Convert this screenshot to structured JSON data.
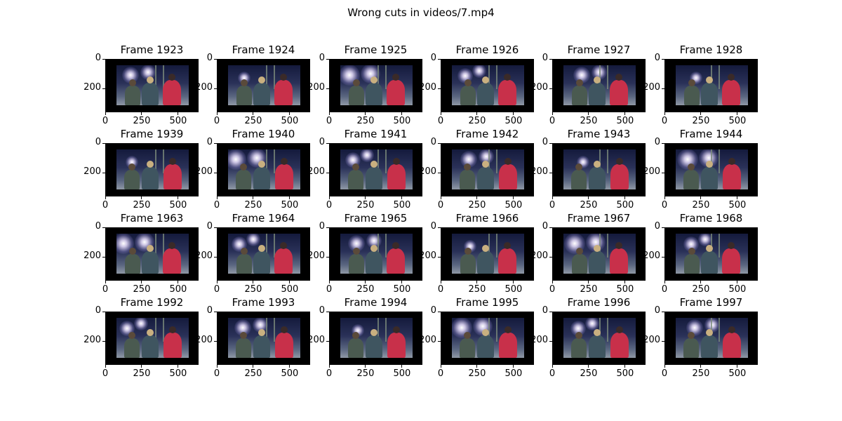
{
  "title": "Wrong cuts in videos/7.mp4",
  "xticks": [
    "0",
    "250",
    "500"
  ],
  "yticks": [
    "0",
    "200"
  ],
  "rows": [
    {
      "frames": [
        "Frame 1923",
        "Frame 1924",
        "Frame 1925",
        "Frame 1926",
        "Frame 1927",
        "Frame 1928"
      ]
    },
    {
      "frames": [
        "Frame 1939",
        "Frame 1940",
        "Frame 1941",
        "Frame 1942",
        "Frame 1943",
        "Frame 1944"
      ]
    },
    {
      "frames": [
        "Frame 1963",
        "Frame 1964",
        "Frame 1965",
        "Frame 1966",
        "Frame 1967",
        "Frame 1968"
      ]
    },
    {
      "frames": [
        "Frame 1992",
        "Frame 1993",
        "Frame 1994",
        "Frame 1995",
        "Frame 1996",
        "Frame 1997"
      ]
    }
  ],
  "chart_data": {
    "type": "image-grid",
    "title": "Wrong cuts in videos/7.mp4",
    "xlim": [
      0,
      640
    ],
    "ylim": [
      360,
      0
    ],
    "grid": false,
    "panels": [
      "Frame 1923",
      "Frame 1924",
      "Frame 1925",
      "Frame 1926",
      "Frame 1927",
      "Frame 1928",
      "Frame 1939",
      "Frame 1940",
      "Frame 1941",
      "Frame 1942",
      "Frame 1943",
      "Frame 1944",
      "Frame 1963",
      "Frame 1964",
      "Frame 1965",
      "Frame 1966",
      "Frame 1967",
      "Frame 1968",
      "Frame 1992",
      "Frame 1993",
      "Frame 1994",
      "Frame 1995",
      "Frame 1996",
      "Frame 1997"
    ]
  }
}
